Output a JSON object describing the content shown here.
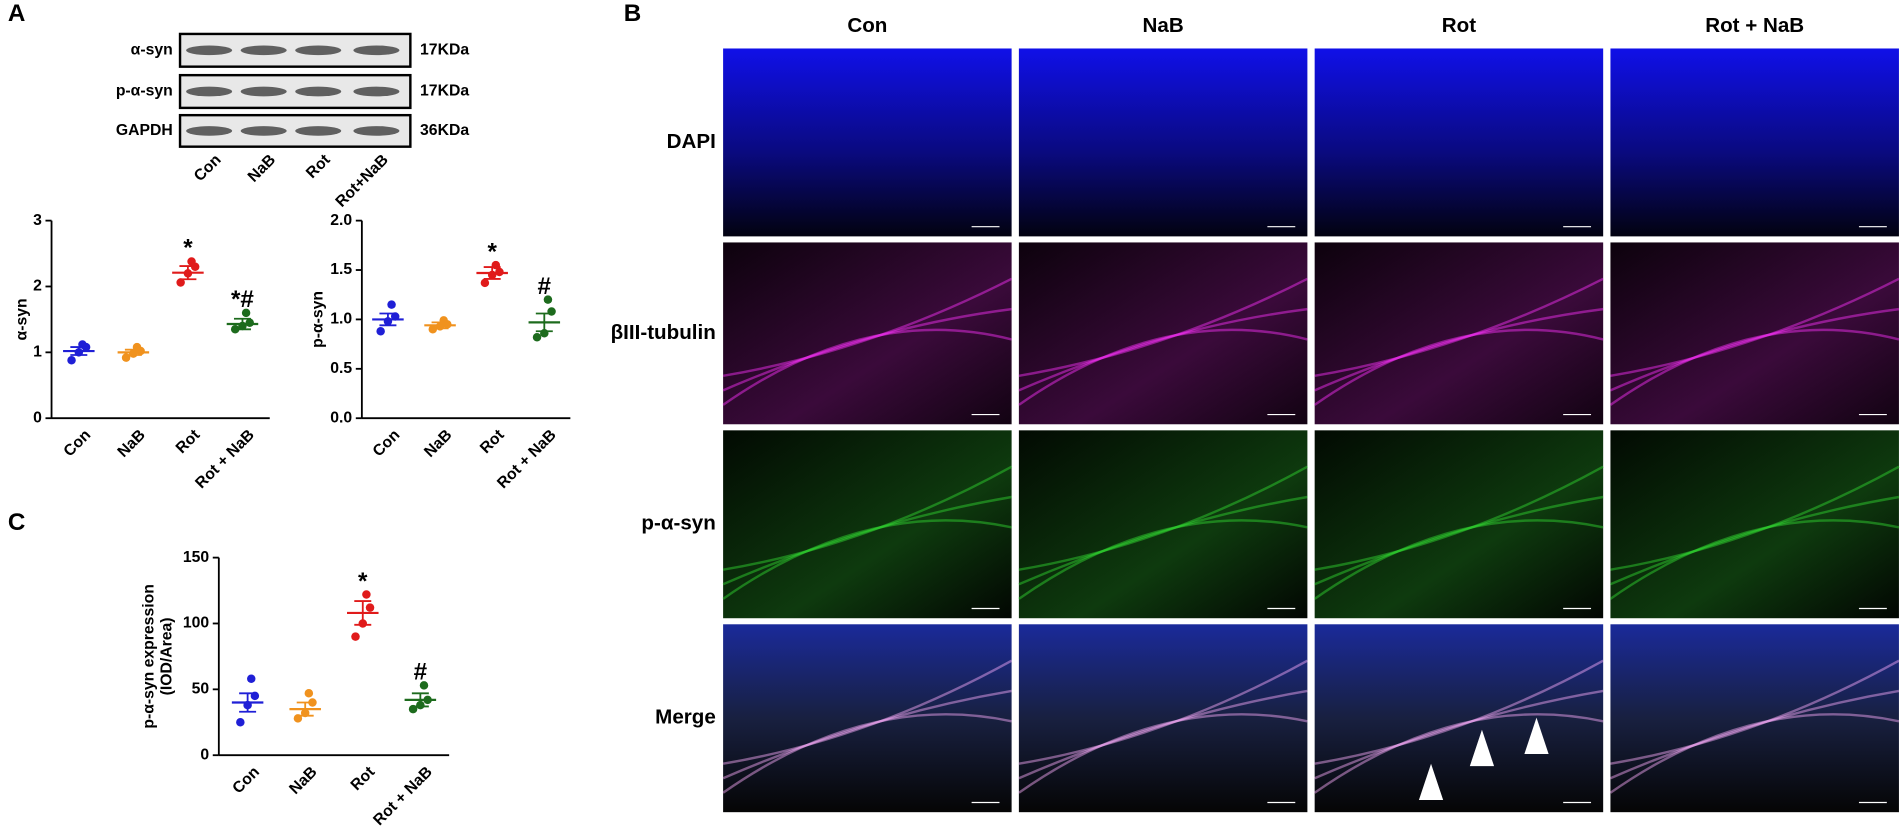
{
  "panel_labels": [
    "A",
    "B",
    "C"
  ],
  "blot": {
    "proteins": [
      {
        "name": "α-syn",
        "size": "17KDa"
      },
      {
        "name": "p-α-syn",
        "size": "17KDa"
      },
      {
        "name": "GAPDH",
        "size": "36KDa"
      }
    ],
    "lanes": [
      "Con",
      "NaB",
      "Rot",
      "Rot+NaB"
    ]
  },
  "chart_data": [
    {
      "type": "dotplot",
      "ylabel": [
        "α-syn"
      ],
      "categories": [
        "Con",
        "NaB",
        "Rot",
        "Rot + NaB"
      ],
      "colors": [
        "#1f1fd6",
        "#f0921e",
        "#e01b1b",
        "#1d6b1d"
      ],
      "values": [
        1.02,
        1.0,
        2.21,
        1.43
      ],
      "errors": [
        0.06,
        0.04,
        0.1,
        0.08
      ],
      "points": [
        [
          0.88,
          1.0,
          1.08,
          1.12
        ],
        [
          0.92,
          0.98,
          1.02,
          1.08
        ],
        [
          2.06,
          2.2,
          2.3,
          2.38
        ],
        [
          1.35,
          1.4,
          1.45,
          1.6
        ]
      ],
      "annotations": [
        null,
        null,
        "*",
        "*#"
      ],
      "ylim": [
        0,
        3
      ],
      "yticks": [
        0,
        1,
        2,
        3
      ]
    },
    {
      "type": "dotplot",
      "ylabel": [
        "p-α-syn"
      ],
      "categories": [
        "Con",
        "NaB",
        "Rot",
        "Rot + NaB"
      ],
      "colors": [
        "#1f1fd6",
        "#f0921e",
        "#e01b1b",
        "#1d6b1d"
      ],
      "values": [
        1.0,
        0.94,
        1.47,
        0.97
      ],
      "errors": [
        0.06,
        0.03,
        0.06,
        0.09
      ],
      "points": [
        [
          0.88,
          0.98,
          1.03,
          1.15
        ],
        [
          0.9,
          0.93,
          0.95,
          0.99
        ],
        [
          1.37,
          1.45,
          1.48,
          1.55
        ],
        [
          0.82,
          0.86,
          1.08,
          1.2
        ]
      ],
      "annotations": [
        null,
        null,
        "*",
        "#"
      ],
      "ylim": [
        0,
        2
      ],
      "yticks": [
        {
          "value": 0,
          "label": "0.0"
        },
        {
          "value": 0.5,
          "label": "0.5"
        },
        {
          "value": 1,
          "label": "1.0"
        },
        {
          "value": 1.5,
          "label": "1.5"
        },
        {
          "value": 2,
          "label": "2.0"
        }
      ]
    },
    {
      "type": "dotplot",
      "ylabel": [
        "p-α-syn expression",
        "(IOD/Area)"
      ],
      "categories": [
        "Con",
        "NaB",
        "Rot",
        "Rot + NaB"
      ],
      "colors": [
        "#1f1fd6",
        "#f0921e",
        "#e01b1b",
        "#1d6b1d"
      ],
      "values": [
        40,
        35,
        108,
        42
      ],
      "errors": [
        7,
        5,
        9,
        5
      ],
      "points": [
        [
          25,
          38,
          45,
          58
        ],
        [
          28,
          32,
          40,
          47
        ],
        [
          90,
          100,
          112,
          122
        ],
        [
          35,
          38,
          42,
          53
        ]
      ],
      "annotations": [
        null,
        null,
        "*",
        "#"
      ],
      "ylim": [
        0,
        150
      ],
      "yticks": [
        0,
        50,
        100,
        150
      ]
    }
  ],
  "micrographs": {
    "columns": [
      "Con",
      "NaB",
      "Rot",
      "Rot + NaB"
    ],
    "rows": [
      "DAPI",
      "βIII-tubulin",
      "p-α-syn",
      "Merge"
    ]
  }
}
